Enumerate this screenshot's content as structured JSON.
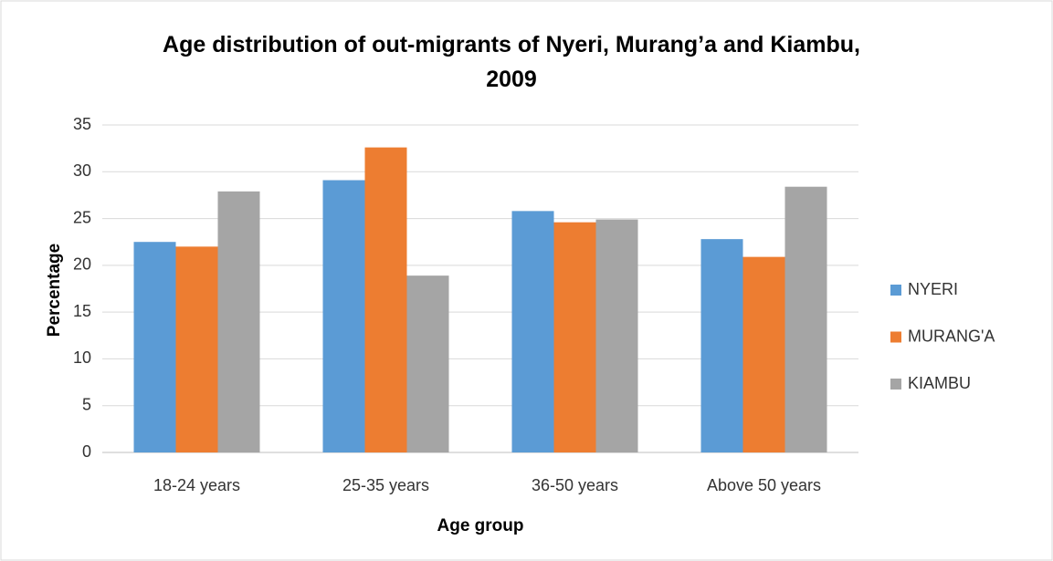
{
  "chart_data": {
    "type": "bar",
    "title": "Age distribution of out-migrants of Nyeri, Murang’a and Kiambu, 2009",
    "xlabel": "Age group",
    "ylabel": "Percentage",
    "categories": [
      "18-24 years",
      "25-35 years",
      "36-50 years",
      "Above 50 years"
    ],
    "series": [
      {
        "name": "NYERI",
        "color": "#5b9bd5",
        "values": [
          22.5,
          29.1,
          25.8,
          22.8
        ]
      },
      {
        "name": "MURANG'A",
        "color": "#ed7d31",
        "values": [
          22.0,
          32.6,
          24.6,
          20.9
        ]
      },
      {
        "name": "KIAMBU",
        "color": "#a5a5a5",
        "values": [
          27.9,
          18.9,
          24.9,
          28.4
        ]
      }
    ],
    "ylim": [
      0,
      35
    ],
    "yticks": [
      0,
      5,
      10,
      15,
      20,
      25,
      30,
      35
    ],
    "grid": true,
    "legend": "right"
  }
}
